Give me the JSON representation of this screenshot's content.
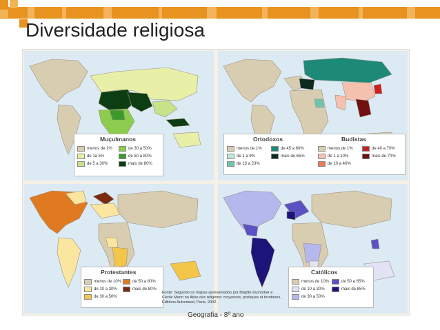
{
  "slide": {
    "title": "Diversidade religiosa",
    "footer": "Geografia - 8º ano",
    "accent_color": "#e8931f"
  },
  "maps": {
    "muculmanos": {
      "title": "Muçulmanos",
      "items": [
        {
          "label": "menos de 1%",
          "color": "#d8cdb0"
        },
        {
          "label": "de 1a 5%",
          "color": "#e8f0a8"
        },
        {
          "label": "de 5 a 30%",
          "color": "#c6e38a"
        },
        {
          "label": "de 30 a 50%",
          "color": "#8dcc4e"
        },
        {
          "label": "de 50 a 80%",
          "color": "#3c9a2c"
        },
        {
          "label": "mais de 80%",
          "color": "#0d3d12"
        }
      ]
    },
    "ortodoxos": {
      "title": "Ortodoxos",
      "items": [
        {
          "label": "menos de 1%",
          "color": "#d8cdb0"
        },
        {
          "label": "de 1 a 9%",
          "color": "#bfe6df"
        },
        {
          "label": "de 13 a 23%",
          "color": "#6fc4ac"
        },
        {
          "label": "de 45 a 60%",
          "color": "#1d8a78"
        },
        {
          "label": "mais de 65%",
          "color": "#0c2a20"
        }
      ]
    },
    "budistas": {
      "title": "Budistas",
      "items": [
        {
          "label": "menos de 1%",
          "color": "#d8cdb0"
        },
        {
          "label": "de 1 a 10%",
          "color": "#f6c2b0"
        },
        {
          "label": "de 10 a 40%",
          "color": "#ee7a55"
        },
        {
          "label": "de 40 a 70%",
          "color": "#cc2020"
        },
        {
          "label": "mais de 70%",
          "color": "#701010"
        }
      ]
    },
    "protestantes": {
      "title": "Protestantes",
      "items": [
        {
          "label": "menos de 10%",
          "color": "#d8cdb0"
        },
        {
          "label": "de 10 a 30%",
          "color": "#fbe6a0"
        },
        {
          "label": "de 30 a 50%",
          "color": "#f3c64a"
        },
        {
          "label": "de 50 a 80%",
          "color": "#e07a20"
        },
        {
          "label": "mais de 80%",
          "color": "#7a2a10"
        }
      ]
    },
    "catolicos": {
      "title": "Católicos",
      "items": [
        {
          "label": "menos de 10%",
          "color": "#d8cdb0"
        },
        {
          "label": "de 10 a 30%",
          "color": "#e2e4f6"
        },
        {
          "label": "de 30 a 50%",
          "color": "#b4b8ec"
        },
        {
          "label": "de 50 a 85%",
          "color": "#5a52c4"
        },
        {
          "label": "mais de 85%",
          "color": "#1c1478"
        }
      ]
    }
  },
  "source": {
    "text": "Fonte: Segundo os mapas apresentados por Brigitte Dumortier e Cécile Marin no Atlas des religions: croyances, pratiques et territoires, Éditions Autrement, Paris, 2002."
  }
}
